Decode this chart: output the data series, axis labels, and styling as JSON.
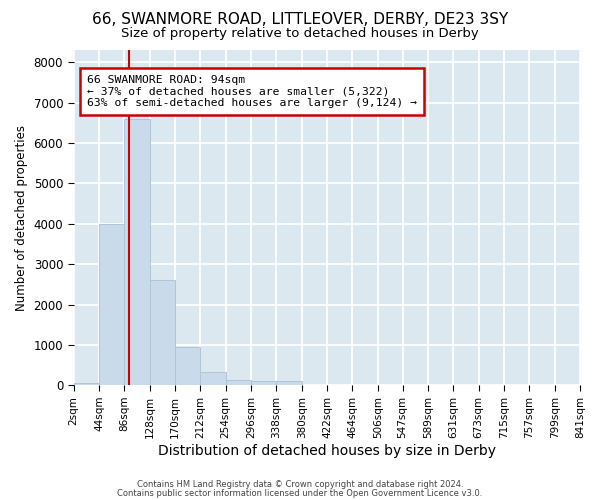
{
  "title1": "66, SWANMORE ROAD, LITTLEOVER, DERBY, DE23 3SY",
  "title2": "Size of property relative to detached houses in Derby",
  "xlabel": "Distribution of detached houses by size in Derby",
  "ylabel": "Number of detached properties",
  "bin_edges": [
    3,
    45,
    87,
    129,
    171,
    213,
    255,
    297,
    339,
    381,
    423,
    465,
    507,
    548,
    590,
    632,
    674,
    716,
    758,
    800,
    842
  ],
  "bin_labels": [
    "2sqm",
    "44sqm",
    "86sqm",
    "128sqm",
    "170sqm",
    "212sqm",
    "254sqm",
    "296sqm",
    "338sqm",
    "380sqm",
    "422sqm",
    "464sqm",
    "506sqm",
    "547sqm",
    "589sqm",
    "631sqm",
    "673sqm",
    "715sqm",
    "757sqm",
    "799sqm",
    "841sqm"
  ],
  "bar_heights": [
    70,
    4000,
    6600,
    2600,
    950,
    320,
    130,
    100,
    100,
    0,
    0,
    0,
    0,
    0,
    0,
    0,
    0,
    0,
    0,
    0
  ],
  "bar_color": "#c9daea",
  "bar_edgecolor": "#aec6d8",
  "property_size": 94,
  "vline_color": "#cc0000",
  "annotation_line1": "66 SWANMORE ROAD: 94sqm",
  "annotation_line2": "← 37% of detached houses are smaller (5,322)",
  "annotation_line3": "63% of semi-detached houses are larger (9,124) →",
  "annotation_border_color": "#cc0000",
  "ylim": [
    0,
    8300
  ],
  "yticks": [
    0,
    1000,
    2000,
    3000,
    4000,
    5000,
    6000,
    7000,
    8000
  ],
  "footer1": "Contains HM Land Registry data © Crown copyright and database right 2024.",
  "footer2": "Contains public sector information licensed under the Open Government Licence v3.0.",
  "bg_color": "#ffffff",
  "plot_bg_color": "#dce8f0",
  "grid_color": "#ffffff",
  "title1_fontsize": 11,
  "title2_fontsize": 9.5,
  "xlabel_fontsize": 10,
  "ylabel_fontsize": 8.5,
  "ytick_fontsize": 8.5,
  "xtick_fontsize": 7.5
}
